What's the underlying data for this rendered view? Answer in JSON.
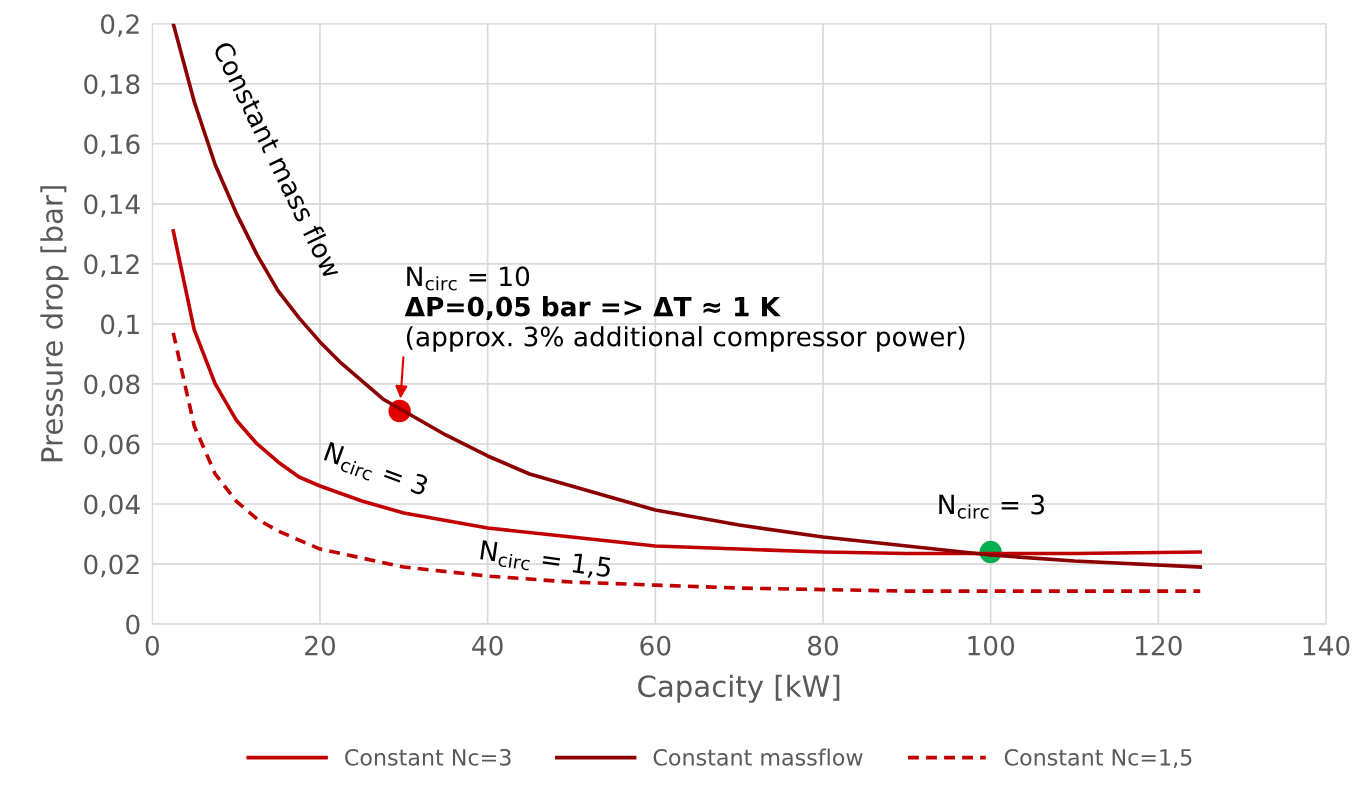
{
  "chart_data": {
    "type": "line",
    "xlabel": "Capacity [kW]",
    "ylabel": "Pressure drop [bar]",
    "xlim": [
      0,
      140
    ],
    "ylim": [
      0,
      0.2
    ],
    "xticks": [
      0,
      20,
      40,
      60,
      80,
      100,
      120,
      140
    ],
    "yticks": [
      0,
      {
        "value": 0.02,
        "label": "0,02"
      },
      {
        "value": 0.04,
        "label": "0,04"
      },
      {
        "value": 0.06,
        "label": "0,06"
      },
      {
        "value": 0.08,
        "label": "0,08"
      },
      {
        "value": 0.1,
        "label": "0,1"
      },
      {
        "value": 0.12,
        "label": "0,12"
      },
      {
        "value": 0.14,
        "label": "0,14"
      },
      {
        "value": 0.16,
        "label": "0,16"
      },
      {
        "value": 0.18,
        "label": "0,18"
      },
      {
        "value": 0.2,
        "label": "0,2"
      }
    ],
    "grid": true,
    "legend": "bottom",
    "marker": "none",
    "series": [
      {
        "name": "Constant Nc=3",
        "color": "#c00000",
        "line_style": "solid",
        "x": [
          2.5,
          5,
          7.5,
          10,
          12.5,
          15,
          17.5,
          20,
          25,
          30,
          40,
          50,
          60,
          70,
          80,
          90,
          100,
          110,
          125
        ],
        "values": [
          0.131,
          0.098,
          0.08,
          0.068,
          0.06,
          0.054,
          0.049,
          0.046,
          0.041,
          0.037,
          0.032,
          0.029,
          0.026,
          0.025,
          0.024,
          0.0235,
          0.0235,
          0.0235,
          0.024
        ]
      },
      {
        "name": "Constant massflow",
        "color": "#8b0000",
        "line_style": "solid",
        "x": [
          2.5,
          5,
          7.5,
          10,
          12.5,
          15,
          17.5,
          20,
          22.5,
          25,
          27.5,
          30,
          35,
          40,
          45,
          50,
          55,
          60,
          70,
          80,
          90,
          100,
          110,
          125
        ],
        "values": [
          0.2,
          0.174,
          0.153,
          0.137,
          0.123,
          0.111,
          0.102,
          0.094,
          0.087,
          0.081,
          0.075,
          0.071,
          0.063,
          0.056,
          0.05,
          0.046,
          0.042,
          0.038,
          0.033,
          0.029,
          0.026,
          0.023,
          0.021,
          0.019
        ]
      },
      {
        "name": "Constant Nc=1,5",
        "color": "#c00000",
        "line_style": "dashed",
        "x": [
          2.5,
          5,
          7.5,
          10,
          12.5,
          15,
          17.5,
          20,
          25,
          30,
          40,
          50,
          60,
          70,
          80,
          90,
          100,
          125
        ],
        "values": [
          0.097,
          0.066,
          0.05,
          0.041,
          0.035,
          0.031,
          0.028,
          0.025,
          0.022,
          0.019,
          0.016,
          0.014,
          0.013,
          0.012,
          0.0115,
          0.011,
          0.011,
          0.011
        ]
      },
      {
        "type": "scatter",
        "marker": "circle",
        "x": [
          29.5,
          100
        ],
        "values": [
          0.071,
          0.024
        ],
        "colors": [
          "#e00000",
          "#00b050"
        ]
      }
    ],
    "annotations": [
      "Constant mass flow",
      "N$_{circ}$ = 3",
      "N$_{circ}$ = 1,5",
      "N$_{circ}$ = 3",
      "N$_{circ}$ = 10",
      "ΔP=0,05 bar => ΔT ≈ 1 K",
      {
        "text": "(approx. 3% additional compressor power)",
        "x": 29.5,
        "y": 0.071
      }
    ]
  }
}
